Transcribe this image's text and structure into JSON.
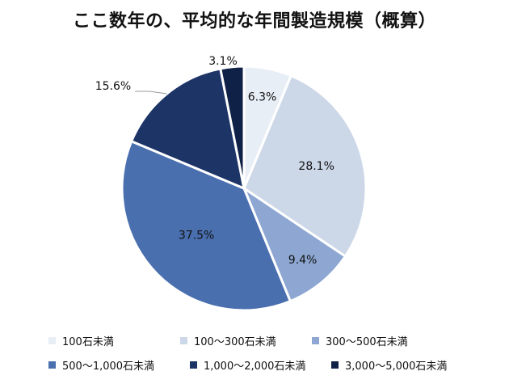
{
  "chart_data": {
    "type": "pie",
    "title": "ここ数年の、平均的な年間製造規模（概算）",
    "categories": [
      "100石未満",
      "100〜300石未満",
      "300〜500石未満",
      "500〜1,000石未満",
      "1,000〜2,000石未満",
      "3,000〜5,000石未満"
    ],
    "values": [
      6.3,
      28.1,
      9.4,
      37.5,
      15.6,
      3.1
    ],
    "data_labels": [
      "6.3%",
      "28.1%",
      "9.4%",
      "37.5%",
      "15.6%",
      "3.1%"
    ],
    "colors": [
      "#e8eef6",
      "#ccd7e8",
      "#8da7d2",
      "#4a6faf",
      "#1c3466",
      "#0f2147"
    ],
    "start_angle": "top (12 o'clock)",
    "direction": "clockwise",
    "legend_position": "bottom"
  }
}
